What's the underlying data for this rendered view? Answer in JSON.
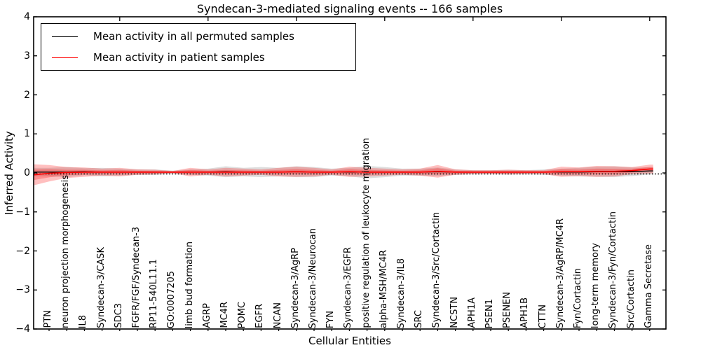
{
  "title": "Syndecan-3-mediated signaling events -- 166 samples",
  "axes": {
    "ylabel": "Inferred Activity",
    "xlabel": "Cellular Entities",
    "ytick_labels": [
      "4",
      "3",
      "2",
      "1",
      "0",
      "−1",
      "−2",
      "−3",
      "−4"
    ],
    "ytick_values": [
      4,
      3,
      2,
      1,
      0,
      -1,
      -2,
      -3,
      -4
    ]
  },
  "legend": {
    "items": [
      {
        "label": "Mean activity in all permuted samples",
        "color": "#000000"
      },
      {
        "label": "Mean activity in patient samples",
        "color": "#ff0000"
      }
    ]
  },
  "colors": {
    "permuted_line": "#000000",
    "patient_line": "#ff0000",
    "permuted_band": "rgba(0,0,0,0.13)",
    "patient_band": "rgba(255,0,0,0.25)",
    "baseline_dotted": "#000000",
    "frame": "#000000"
  },
  "chart_data": {
    "type": "line",
    "title": "Syndecan-3-mediated signaling events -- 166 samples",
    "xlabel": "Cellular Entities",
    "ylabel": "Inferred Activity",
    "ylim": [
      -4,
      4
    ],
    "grid": false,
    "legend_position": "upper left",
    "categories": [
      "PTN",
      "neuron projection morphogenesis",
      "IL8",
      "Syndecan-3/CASK",
      "SDC3",
      "FGFR/FGF/Syndecan-3",
      "RP11-540L11.1",
      "GO:0007205",
      "limb bud formation",
      "AGRP",
      "MC4R",
      "POMC",
      "EGFR",
      "NCAN",
      "Syndecan-3/AgRP",
      "Syndecan-3/Neurocan",
      "FYN",
      "Syndecan-3/EGFR",
      "positive regulation of leukocyte migration",
      "alpha-MSH/MC4R",
      "Syndecan-3/IL8",
      "SRC",
      "Syndecan-3/Src/Cortactin",
      "NCSTN",
      "APH1A",
      "PSEN1",
      "PSENEN",
      "APH1B",
      "CTTN",
      "Syndecan-3/AgRP/MC4R",
      "Fyn/Cortactin",
      "long-term memory",
      "Syndecan-3/Fyn/Cortactin",
      "Src/Cortactin",
      "Gamma Secretase"
    ],
    "series": [
      {
        "name": "Mean activity in all permuted samples",
        "values": [
          0.02,
          0.02,
          0.03,
          0.02,
          0.02,
          0.02,
          0.02,
          0.02,
          0.02,
          0.02,
          0.03,
          0.02,
          0.02,
          0.02,
          0.03,
          0.02,
          0.02,
          0.02,
          0.02,
          0.02,
          0.02,
          0.02,
          0.03,
          0.02,
          0.02,
          0.02,
          0.02,
          0.02,
          0.02,
          0.02,
          0.02,
          0.03,
          0.03,
          0.03,
          0.05
        ]
      },
      {
        "name": "Mean activity in patient samples",
        "values": [
          -0.01,
          0.01,
          0.02,
          0.02,
          0.02,
          0.02,
          0.02,
          0.02,
          0.02,
          0.02,
          0.02,
          0.02,
          0.02,
          0.02,
          0.03,
          0.02,
          0.02,
          0.03,
          0.02,
          0.02,
          0.02,
          0.02,
          0.04,
          0.02,
          0.02,
          0.02,
          0.02,
          0.02,
          0.02,
          0.03,
          0.03,
          0.04,
          0.04,
          0.06,
          0.1
        ]
      }
    ],
    "bands": [
      {
        "name": "permuted sample range (half-width)",
        "half_widths": [
          0.11,
          0.13,
          0.09,
          0.11,
          0.09,
          0.07,
          0.07,
          0.04,
          0.07,
          0.09,
          0.14,
          0.11,
          0.13,
          0.11,
          0.14,
          0.13,
          0.09,
          0.11,
          0.16,
          0.13,
          0.09,
          0.09,
          0.11,
          0.07,
          0.05,
          0.05,
          0.06,
          0.05,
          0.07,
          0.09,
          0.11,
          0.13,
          0.14,
          0.11,
          0.09
        ]
      },
      {
        "name": "patient sample range (half-width)",
        "half_widths": [
          0.21,
          0.14,
          0.12,
          0.09,
          0.11,
          0.07,
          0.06,
          0.03,
          0.11,
          0.07,
          0.11,
          0.09,
          0.07,
          0.11,
          0.13,
          0.11,
          0.07,
          0.13,
          0.11,
          0.09,
          0.07,
          0.09,
          0.16,
          0.07,
          0.05,
          0.05,
          0.06,
          0.05,
          0.05,
          0.13,
          0.11,
          0.14,
          0.13,
          0.09,
          0.11
        ]
      }
    ],
    "baseline": 0
  }
}
